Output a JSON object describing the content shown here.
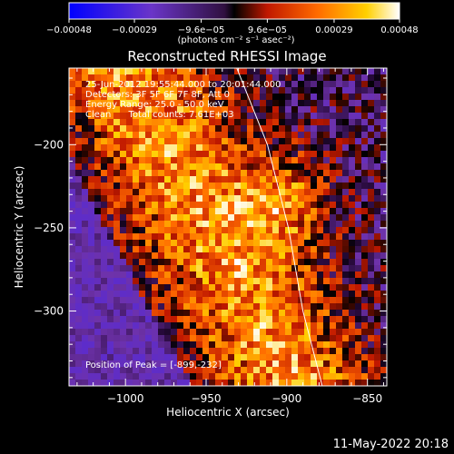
{
  "chart_data": {
    "type": "heatmap",
    "title": "Reconstructed RHESSI Image",
    "xlabel": "Heliocentric X (arcsec)",
    "ylabel": "Heliocentric Y (arcsec)",
    "xlim": [
      -1035,
      -838
    ],
    "ylim": [
      -345,
      -154
    ],
    "x_ticks": [
      -1000,
      -950,
      -900,
      -850
    ],
    "x_tick_labels": [
      "−1000",
      "−950",
      "−900",
      "−850"
    ],
    "y_ticks": [
      -200,
      -250,
      -300
    ],
    "y_tick_labels": [
      "−200",
      "−250",
      "−300"
    ],
    "colorbar": {
      "range": [
        -0.00048,
        0.00048
      ],
      "ticks": [
        -0.00048,
        -0.00029,
        -9.6e-05,
        9.6e-05,
        0.00029,
        0.00048
      ],
      "tick_labels": [
        "−0.00048",
        "−0.00029",
        "−9.6e−05",
        "9.6e−05",
        "0.00029",
        "0.00048"
      ],
      "units": "(photons cm⁻² s⁻¹ asec⁻²)",
      "colors": [
        "#0000ff",
        "#5a2bd0",
        "#8a3fb0",
        "#000000",
        "#c01800",
        "#ff6a00",
        "#ffd000",
        "#ffffff"
      ]
    },
    "peak": {
      "x": -899,
      "y": -232
    },
    "limb_line": {
      "x": [
        -931,
        -912,
        -899,
        -890,
        -878
      ],
      "y": [
        -154,
        -200,
        -250,
        -300,
        -345
      ]
    }
  },
  "annotations": {
    "line1": "25-Jun-2012 19:55:44.000 to 20:01:44.000",
    "line2": "Detectors: 3F 5F 6F 7F 8F, Att 0",
    "line3": "Energy Range: 25.0 - 50.0 keV",
    "line4": "Clean      Total counts: 7.61E+03",
    "peak_text": "Position of Peak = [-899,-232]"
  },
  "footer_date": "11-May-2022 20:18"
}
